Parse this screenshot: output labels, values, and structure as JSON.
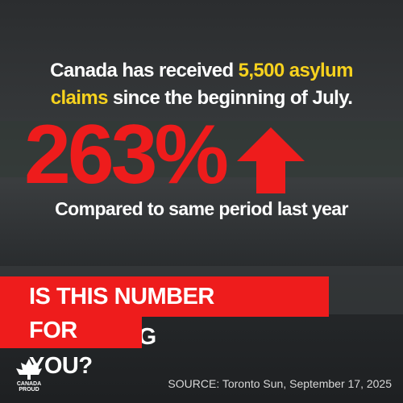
{
  "headline": {
    "part1": "Canada has received",
    "highlight1": "5,500 asylum",
    "highlight2": "claims",
    "part2": "since the beginning of July."
  },
  "stat": "263%",
  "subline": "Compared to same period last year",
  "banner": {
    "line1": "IS THIS NUMBER WORRYING",
    "line2": "FOR YOU?"
  },
  "logo": "CANADA PROUD",
  "source": "SOURCE: Toronto Sun, September 17, 2025"
}
